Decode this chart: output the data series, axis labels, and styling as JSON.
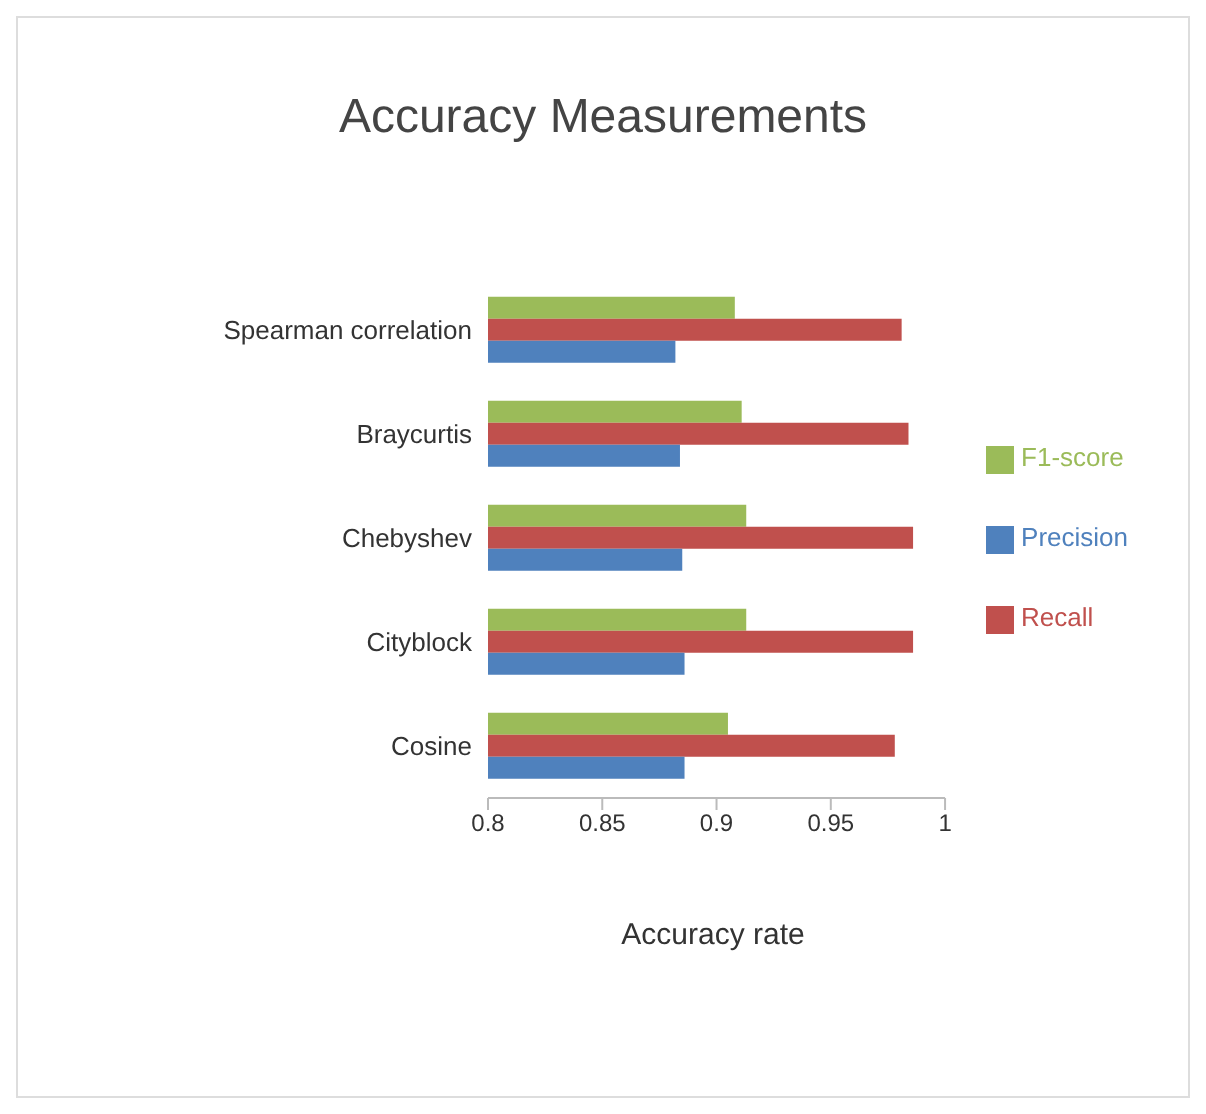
{
  "chart_data": {
    "type": "bar",
    "orientation": "horizontal",
    "title": "Accuracy Measurements",
    "xlabel": "Accuracy rate",
    "categories": [
      "Spearman correlation",
      "Braycurtis",
      "Chebyshev",
      "Cityblock",
      "Cosine"
    ],
    "series": [
      {
        "name": "F1-score",
        "color": "#9bbb59",
        "values": [
          0.908,
          0.911,
          0.913,
          0.913,
          0.905
        ]
      },
      {
        "name": "Recall",
        "color": "#c0504d",
        "values": [
          0.981,
          0.984,
          0.986,
          0.986,
          0.978
        ]
      },
      {
        "name": "Precision",
        "color": "#4f81bd",
        "values": [
          0.882,
          0.884,
          0.885,
          0.886,
          0.886
        ]
      }
    ],
    "xlim": [
      0.8,
      1
    ],
    "xticks": [
      0.8,
      0.85,
      0.9,
      0.95,
      1
    ],
    "grid": false,
    "legend": "right"
  }
}
